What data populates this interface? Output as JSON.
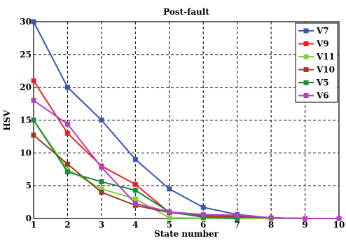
{
  "chart_data": {
    "type": "line",
    "title": "Post-fault",
    "xlabel": "State number",
    "ylabel": "HSV",
    "xlim": [
      1,
      10
    ],
    "ylim": [
      0,
      30
    ],
    "xticks": [
      1,
      2,
      3,
      4,
      5,
      6,
      7,
      8,
      9,
      10
    ],
    "yticks": [
      0,
      5,
      10,
      15,
      20,
      25,
      30
    ],
    "grid": true,
    "legend_position": "top-right",
    "series": [
      {
        "name": "V7",
        "color": "#3a55b4",
        "x": [
          1,
          2,
          3,
          4,
          5,
          6,
          7,
          8,
          9,
          10
        ],
        "y": [
          30,
          20,
          15,
          9,
          4.5,
          1.7,
          0.6,
          0.1,
          0,
          0
        ]
      },
      {
        "name": "V9",
        "color": "#ee2222",
        "x": [
          1,
          2,
          3,
          4,
          5,
          6,
          7,
          8,
          9,
          10
        ],
        "y": [
          21,
          13,
          8,
          5.2,
          0.9,
          0.4,
          0.2,
          0.05,
          0,
          0
        ]
      },
      {
        "name": "V11",
        "color": "#7fd43a",
        "x": [
          1,
          2,
          3,
          4,
          5,
          6,
          7,
          8,
          9,
          10
        ],
        "y": [
          15,
          7.5,
          4.5,
          3,
          0.1,
          0.05,
          0,
          0,
          0,
          0
        ]
      },
      {
        "name": "V10",
        "color": "#9b3a22",
        "x": [
          1,
          2,
          3,
          4,
          5,
          6,
          7,
          8,
          9,
          10
        ],
        "y": [
          12.7,
          8.3,
          4,
          2,
          0.9,
          0.5,
          0.3,
          0.1,
          0,
          0
        ]
      },
      {
        "name": "V5",
        "color": "#1e8a3c",
        "x": [
          1,
          2,
          3,
          4,
          5,
          6,
          7
        ],
        "y": [
          15,
          7.1,
          5.6,
          4.3,
          1,
          0.2,
          0
        ]
      },
      {
        "name": "V6",
        "color": "#b840c0",
        "x": [
          1,
          2,
          3,
          4,
          5,
          6,
          7,
          8,
          9,
          10
        ],
        "y": [
          18,
          14.4,
          7.8,
          2.3,
          1,
          0.6,
          0.5,
          0.1,
          0,
          0
        ]
      }
    ]
  }
}
